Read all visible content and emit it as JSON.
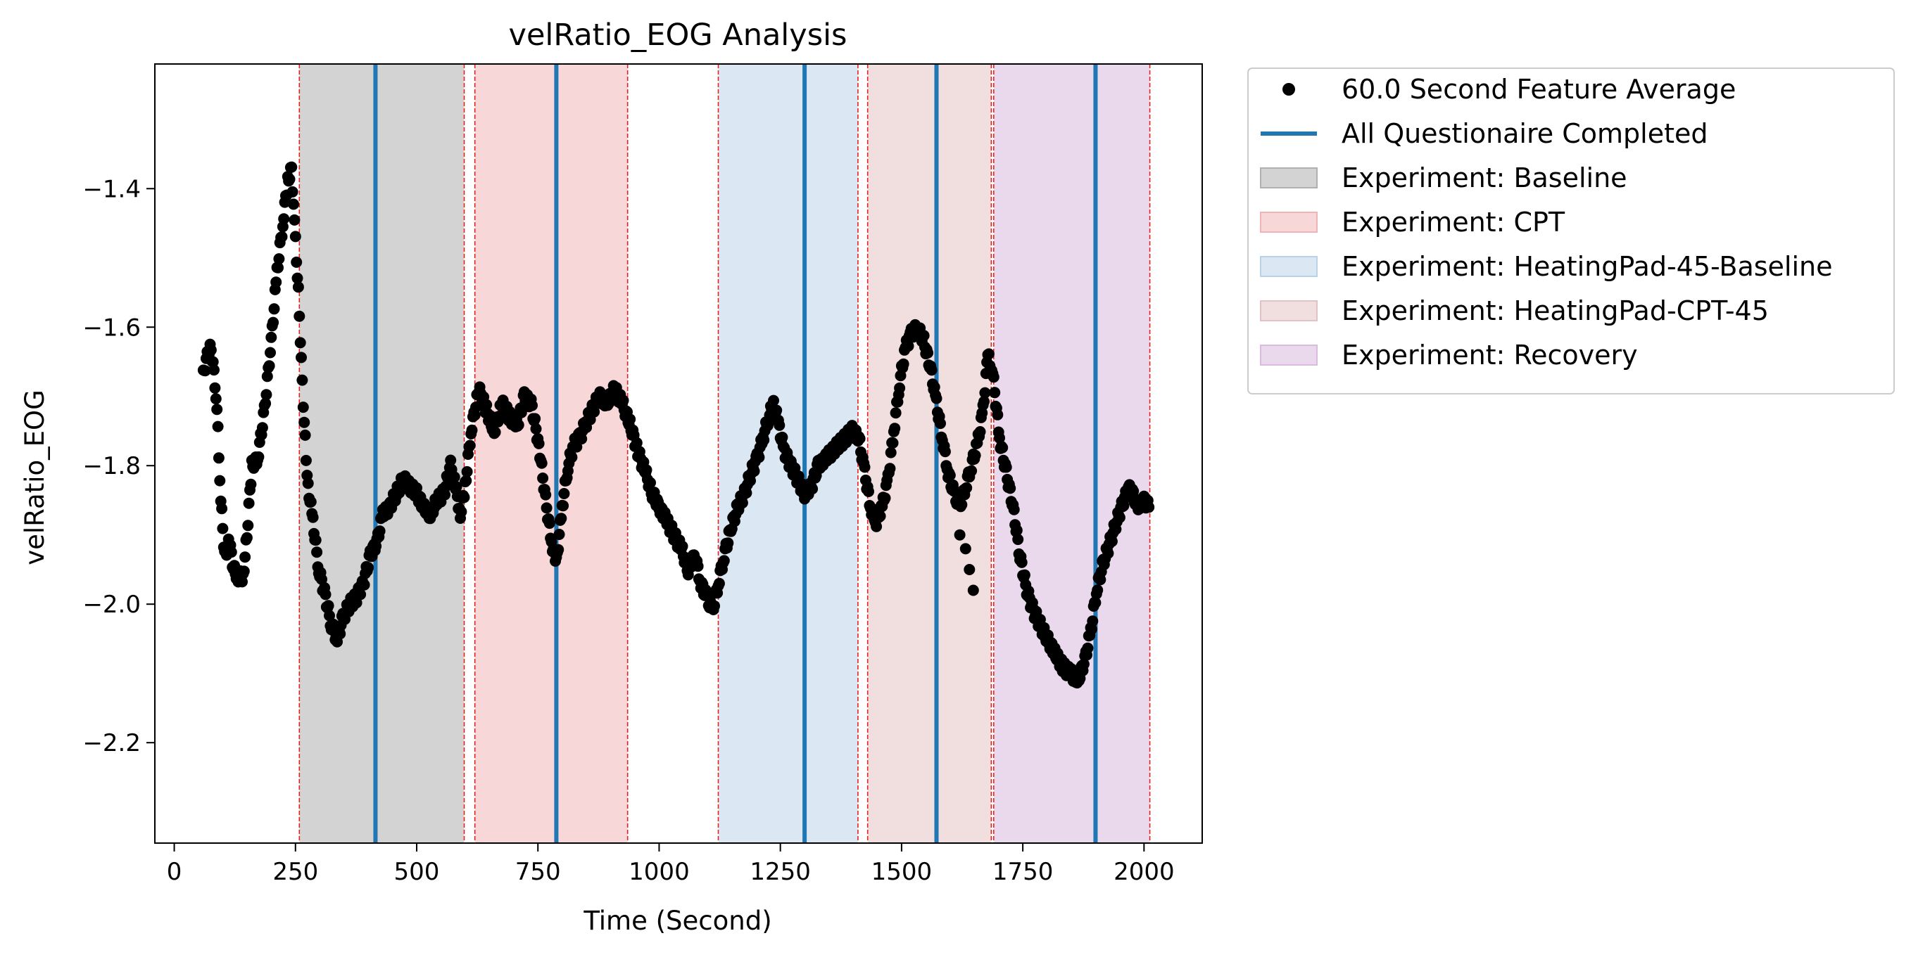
{
  "chart_data": {
    "type": "scatter",
    "title": "velRatio_EOG Analysis",
    "xlabel": "Time (Second)",
    "ylabel": "velRatio_EOG",
    "xlim": [
      -40,
      2120
    ],
    "ylim": [
      -2.345,
      -1.22
    ],
    "xticks": [
      0,
      250,
      500,
      750,
      1000,
      1250,
      1500,
      1750,
      2000
    ],
    "xtick_labels": [
      "0",
      "250",
      "500",
      "750",
      "1000",
      "1250",
      "1500",
      "1750",
      "2000"
    ],
    "yticks": [
      -2.2,
      -2.0,
      -1.8,
      -1.6,
      -1.4
    ],
    "ytick_labels": [
      "−2.2",
      "−2.0",
      "−1.8",
      "−1.6",
      "−1.4"
    ],
    "grid": false,
    "legend_placement": "outside upper right",
    "series": [
      {
        "name": "60.0 Second Feature Average",
        "kind": "points",
        "color": "#000000",
        "keypoints": [
          [
            60,
            -1.67
          ],
          [
            68,
            -1.64
          ],
          [
            76,
            -1.63
          ],
          [
            84,
            -1.68
          ],
          [
            90,
            -1.75
          ],
          [
            96,
            -1.85
          ],
          [
            104,
            -1.93
          ],
          [
            114,
            -1.91
          ],
          [
            122,
            -1.95
          ],
          [
            132,
            -1.96
          ],
          [
            142,
            -1.96
          ],
          [
            150,
            -1.9
          ],
          [
            160,
            -1.8
          ],
          [
            172,
            -1.79
          ],
          [
            186,
            -1.72
          ],
          [
            200,
            -1.62
          ],
          [
            212,
            -1.52
          ],
          [
            224,
            -1.45
          ],
          [
            234,
            -1.39
          ],
          [
            242,
            -1.37
          ],
          [
            248,
            -1.45
          ],
          [
            256,
            -1.55
          ],
          [
            264,
            -1.68
          ],
          [
            274,
            -1.82
          ],
          [
            286,
            -1.88
          ],
          [
            298,
            -1.95
          ],
          [
            312,
            -1.99
          ],
          [
            324,
            -2.03
          ],
          [
            336,
            -2.05
          ],
          [
            348,
            -2.02
          ],
          [
            362,
            -2.0
          ],
          [
            376,
            -1.99
          ],
          [
            390,
            -1.97
          ],
          [
            404,
            -1.93
          ],
          [
            418,
            -1.91
          ],
          [
            430,
            -1.87
          ],
          [
            444,
            -1.86
          ],
          [
            458,
            -1.84
          ],
          [
            472,
            -1.82
          ],
          [
            486,
            -1.83
          ],
          [
            500,
            -1.84
          ],
          [
            514,
            -1.86
          ],
          [
            528,
            -1.87
          ],
          [
            542,
            -1.85
          ],
          [
            556,
            -1.84
          ],
          [
            570,
            -1.8
          ],
          [
            580,
            -1.83
          ],
          [
            590,
            -1.87
          ],
          [
            600,
            -1.83
          ],
          [
            612,
            -1.75
          ],
          [
            628,
            -1.69
          ],
          [
            644,
            -1.72
          ],
          [
            660,
            -1.75
          ],
          [
            676,
            -1.71
          ],
          [
            692,
            -1.73
          ],
          [
            708,
            -1.74
          ],
          [
            722,
            -1.7
          ],
          [
            736,
            -1.71
          ],
          [
            752,
            -1.77
          ],
          [
            766,
            -1.85
          ],
          [
            778,
            -1.91
          ],
          [
            788,
            -1.94
          ],
          [
            800,
            -1.86
          ],
          [
            812,
            -1.8
          ],
          [
            824,
            -1.77
          ],
          [
            836,
            -1.76
          ],
          [
            848,
            -1.74
          ],
          [
            862,
            -1.72
          ],
          [
            876,
            -1.7
          ],
          [
            892,
            -1.71
          ],
          [
            908,
            -1.69
          ],
          [
            924,
            -1.71
          ],
          [
            940,
            -1.74
          ],
          [
            956,
            -1.78
          ],
          [
            972,
            -1.81
          ],
          [
            986,
            -1.84
          ],
          [
            1000,
            -1.86
          ],
          [
            1016,
            -1.88
          ],
          [
            1030,
            -1.9
          ],
          [
            1046,
            -1.92
          ],
          [
            1060,
            -1.95
          ],
          [
            1074,
            -1.93
          ],
          [
            1086,
            -1.97
          ],
          [
            1098,
            -1.99
          ],
          [
            1110,
            -2.01
          ],
          [
            1122,
            -1.97
          ],
          [
            1134,
            -1.93
          ],
          [
            1148,
            -1.89
          ],
          [
            1162,
            -1.86
          ],
          [
            1176,
            -1.84
          ],
          [
            1190,
            -1.81
          ],
          [
            1202,
            -1.79
          ],
          [
            1214,
            -1.76
          ],
          [
            1226,
            -1.73
          ],
          [
            1236,
            -1.71
          ],
          [
            1246,
            -1.74
          ],
          [
            1258,
            -1.78
          ],
          [
            1272,
            -1.8
          ],
          [
            1286,
            -1.82
          ],
          [
            1300,
            -1.84
          ],
          [
            1314,
            -1.83
          ],
          [
            1328,
            -1.8
          ],
          [
            1342,
            -1.79
          ],
          [
            1356,
            -1.78
          ],
          [
            1370,
            -1.77
          ],
          [
            1384,
            -1.76
          ],
          [
            1398,
            -1.75
          ],
          [
            1412,
            -1.76
          ],
          [
            1424,
            -1.81
          ],
          [
            1436,
            -1.86
          ],
          [
            1448,
            -1.88
          ],
          [
            1460,
            -1.86
          ],
          [
            1472,
            -1.82
          ],
          [
            1484,
            -1.75
          ],
          [
            1496,
            -1.68
          ],
          [
            1508,
            -1.63
          ],
          [
            1520,
            -1.61
          ],
          [
            1532,
            -1.6
          ],
          [
            1546,
            -1.62
          ],
          [
            1560,
            -1.66
          ],
          [
            1572,
            -1.71
          ],
          [
            1584,
            -1.76
          ],
          [
            1596,
            -1.81
          ],
          [
            1608,
            -1.84
          ],
          [
            1620,
            -1.86
          ],
          [
            1632,
            -1.83
          ],
          [
            1644,
            -1.8
          ],
          [
            1656,
            -1.77
          ],
          [
            1668,
            -1.72
          ],
          [
            1678,
            -1.64
          ],
          [
            1690,
            -1.68
          ],
          [
            1702,
            -1.76
          ],
          [
            1716,
            -1.81
          ],
          [
            1730,
            -1.86
          ],
          [
            1744,
            -1.93
          ],
          [
            1758,
            -1.98
          ],
          [
            1772,
            -2.01
          ],
          [
            1786,
            -2.03
          ],
          [
            1800,
            -2.05
          ],
          [
            1816,
            -2.07
          ],
          [
            1832,
            -2.09
          ],
          [
            1848,
            -2.1
          ],
          [
            1864,
            -2.11
          ],
          [
            1878,
            -2.08
          ],
          [
            1890,
            -2.04
          ],
          [
            1902,
            -1.98
          ],
          [
            1916,
            -1.94
          ],
          [
            1930,
            -1.91
          ],
          [
            1944,
            -1.88
          ],
          [
            1958,
            -1.85
          ],
          [
            1972,
            -1.83
          ],
          [
            1986,
            -1.86
          ],
          [
            2000,
            -1.85
          ],
          [
            2010,
            -1.86
          ]
        ],
        "scatter_outliers": [
          [
            1620,
            -1.9
          ],
          [
            1632,
            -1.92
          ],
          [
            1640,
            -1.95
          ],
          [
            1648,
            -1.98
          ]
        ]
      },
      {
        "name": "All Questionaire Completed",
        "kind": "vlines",
        "color": "#1f77b4",
        "x": [
          415,
          788,
          1300,
          1572,
          1900
        ]
      }
    ],
    "regions": [
      {
        "name": "Experiment: Baseline",
        "color": "#d3d3d3",
        "border": "#b0b0b0",
        "spans": [
          [
            258,
            598
          ]
        ]
      },
      {
        "name": "Experiment: CPT",
        "color": "#f8d7d9",
        "border": "#f0b3b6",
        "spans": [
          [
            620,
            935
          ]
        ]
      },
      {
        "name": "Experiment: HeatingPad-45-Baseline",
        "color": "#dbe8f3",
        "border": "#b9d2e6",
        "spans": [
          [
            1122,
            1410
          ]
        ]
      },
      {
        "name": "Experiment: HeatingPad-CPT-45",
        "color": "#f1dedf",
        "border": "#e3c2c4",
        "spans": [
          [
            1430,
            1685
          ]
        ]
      },
      {
        "name": "Experiment: Recovery",
        "color": "#ead9ec",
        "border": "#d8bcdc",
        "spans": [
          [
            1690,
            2012
          ]
        ]
      }
    ],
    "boundary_lines": {
      "color": "#e8201f",
      "x": [
        258,
        598,
        620,
        935,
        1122,
        1410,
        1430,
        1685,
        1690,
        2012
      ]
    },
    "legend": [
      {
        "label": "60.0 Second Feature Average",
        "symbol": "dot",
        "color": "#000000"
      },
      {
        "label": "All Questionaire Completed",
        "symbol": "line",
        "color": "#1f77b4"
      },
      {
        "label": "Experiment: Baseline",
        "symbol": "patch",
        "color": "#d3d3d3",
        "border": "#b0b0b0"
      },
      {
        "label": "Experiment: CPT",
        "symbol": "patch",
        "color": "#f8d7d9",
        "border": "#f0b3b6"
      },
      {
        "label": "Experiment: HeatingPad-45-Baseline",
        "symbol": "patch",
        "color": "#dbe8f3",
        "border": "#b9d2e6"
      },
      {
        "label": "Experiment: HeatingPad-CPT-45",
        "symbol": "patch",
        "color": "#f1dedf",
        "border": "#e3c2c4"
      },
      {
        "label": "Experiment: Recovery",
        "symbol": "patch",
        "color": "#ead9ec",
        "border": "#d8bcdc"
      }
    ]
  }
}
